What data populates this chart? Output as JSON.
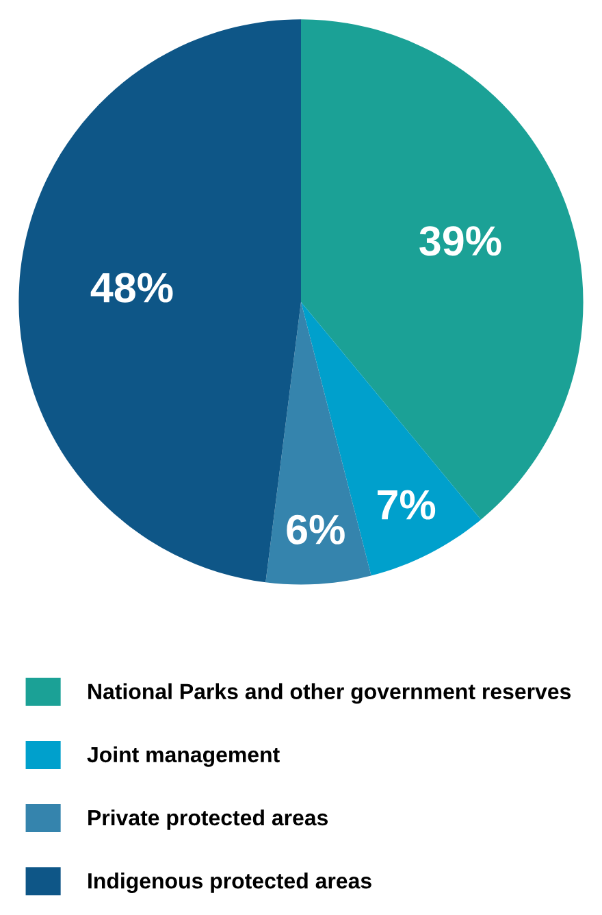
{
  "chart_data": {
    "type": "pie",
    "categories": [
      "National Parks and other government reserves",
      "Joint management",
      "Private protected areas",
      "Indigenous protected areas"
    ],
    "values": [
      39,
      7,
      6,
      48
    ],
    "colors": [
      "#1ba196",
      "#00a0cc",
      "#3584ad",
      "#0e5687"
    ],
    "value_labels": [
      "39%",
      "7%",
      "6%",
      "48%"
    ],
    "legend": "bottom"
  }
}
